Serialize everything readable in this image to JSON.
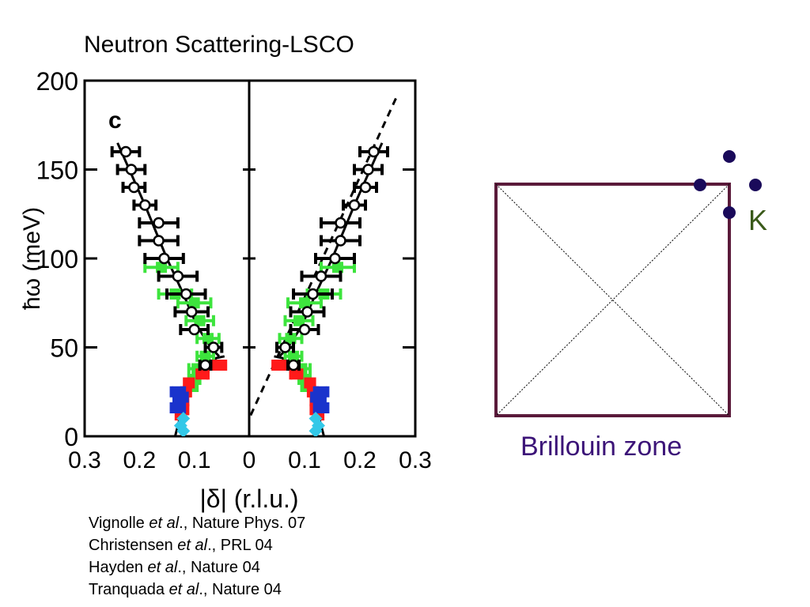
{
  "title": "Neutron Scattering-LSCO",
  "chart_data": {
    "type": "scatter",
    "panel_label": "c",
    "ylabel": "ħω (meV)",
    "xlabel": "|δ| (r.l.u.)",
    "ylim": [
      0,
      200
    ],
    "y_ticks": [
      "0",
      "50",
      "100",
      "150",
      "200"
    ],
    "left_panel": {
      "xlim": [
        0.3,
        0.0
      ],
      "x_ticks": [
        "0.3",
        "0.2",
        "0.1"
      ]
    },
    "right_panel": {
      "xlim": [
        0.0,
        0.3
      ],
      "x_ticks": [
        "0",
        "0.1",
        "0.2",
        "0.3"
      ]
    },
    "colors": {
      "circles": "#000000",
      "green": "#3de43d",
      "red": "#ff1a1a",
      "blue": "#1a33cc",
      "cyan": "#33c8e8",
      "fit": "#000000"
    },
    "series": [
      {
        "marker": "open-circle",
        "points": [
          {
            "x": 0.225,
            "y": 160,
            "xerr": 0.025
          },
          {
            "x": 0.215,
            "y": 150,
            "xerr": 0.025
          },
          {
            "x": 0.21,
            "y": 140,
            "xerr": 0.02
          },
          {
            "x": 0.19,
            "y": 130,
            "xerr": 0.02
          },
          {
            "x": 0.165,
            "y": 120,
            "xerr": 0.035
          },
          {
            "x": 0.165,
            "y": 110,
            "xerr": 0.035
          },
          {
            "x": 0.155,
            "y": 100,
            "xerr": 0.035
          },
          {
            "x": 0.13,
            "y": 90,
            "xerr": 0.035
          },
          {
            "x": 0.115,
            "y": 80,
            "xerr": 0.035
          },
          {
            "x": 0.105,
            "y": 70,
            "xerr": 0.03
          },
          {
            "x": 0.1,
            "y": 60,
            "xerr": 0.025
          },
          {
            "x": 0.065,
            "y": 50,
            "xerr": 0.015
          },
          {
            "x": 0.08,
            "y": 40,
            "xerr": 0.01
          }
        ]
      },
      {
        "marker": "green-square",
        "points": [
          {
            "x": 0.16,
            "y": 95,
            "xerr": 0.03
          },
          {
            "x": 0.135,
            "y": 80,
            "xerr": 0.03
          },
          {
            "x": 0.1,
            "y": 75,
            "xerr": 0.03
          },
          {
            "x": 0.09,
            "y": 65,
            "xerr": 0.025
          },
          {
            "x": 0.075,
            "y": 55,
            "xerr": 0.02
          },
          {
            "x": 0.08,
            "y": 45,
            "xerr": 0.015
          },
          {
            "x": 0.095,
            "y": 38,
            "xerr": 0.015
          },
          {
            "x": 0.1,
            "y": 32,
            "xerr": 0.01
          },
          {
            "x": 0.105,
            "y": 28,
            "xerr": 0.01
          }
        ]
      },
      {
        "marker": "red-square",
        "points": [
          {
            "x": 0.055,
            "y": 40,
            "xerr": 0.012
          },
          {
            "x": 0.085,
            "y": 35,
            "xerr": 0.01
          },
          {
            "x": 0.11,
            "y": 30,
            "xerr": 0.008
          },
          {
            "x": 0.115,
            "y": 25,
            "xerr": 0.008
          },
          {
            "x": 0.12,
            "y": 20,
            "xerr": 0.008
          },
          {
            "x": 0.12,
            "y": 15,
            "xerr": 0.008
          },
          {
            "x": 0.125,
            "y": 12,
            "xerr": 0.008
          }
        ]
      },
      {
        "marker": "blue-square",
        "points": [
          {
            "x": 0.13,
            "y": 25,
            "xerr": 0.012
          },
          {
            "x": 0.125,
            "y": 22,
            "xerr": 0.012
          },
          {
            "x": 0.13,
            "y": 16,
            "xerr": 0.012
          }
        ]
      },
      {
        "marker": "cyan-diamond",
        "points": [
          {
            "x": 0.12,
            "y": 10
          },
          {
            "x": 0.125,
            "y": 6
          },
          {
            "x": 0.12,
            "y": 3
          }
        ]
      }
    ],
    "fit_curves": [
      {
        "style": "solid",
        "points": [
          [
            0.24,
            165
          ],
          [
            0.19,
            130
          ],
          [
            0.15,
            100
          ],
          [
            0.12,
            80
          ],
          [
            0.095,
            62
          ],
          [
            0.07,
            50
          ],
          [
            0.055,
            45
          ]
        ]
      },
      {
        "style": "solid",
        "points": [
          [
            0.045,
            45
          ],
          [
            0.06,
            44
          ],
          [
            0.085,
            37
          ],
          [
            0.11,
            25
          ],
          [
            0.125,
            12
          ],
          [
            0.135,
            0
          ]
        ]
      },
      {
        "style": "dashed",
        "panel": "right",
        "points": [
          [
            0.265,
            190
          ],
          [
            0.0,
            10
          ]
        ]
      }
    ]
  },
  "references": [
    {
      "author": "Vignolle ",
      "etal": "et al",
      "rest": "., Nature Phys. 07"
    },
    {
      "author": "Christensen ",
      "etal": "et al",
      "rest": "., PRL 04"
    },
    {
      "author": "Hayden ",
      "etal": "et al",
      "rest": "., Nature 04"
    },
    {
      "author": "Tranquada ",
      "etal": "et al",
      "rest": "., Nature 04"
    }
  ],
  "brillouin": {
    "caption": "Brillouin zone",
    "k_label": "K",
    "border_color": "#5a1a3a",
    "dot_color": "#1a0a5a",
    "caption_color": "#3c1478",
    "k_color": "#3a5a1a"
  }
}
